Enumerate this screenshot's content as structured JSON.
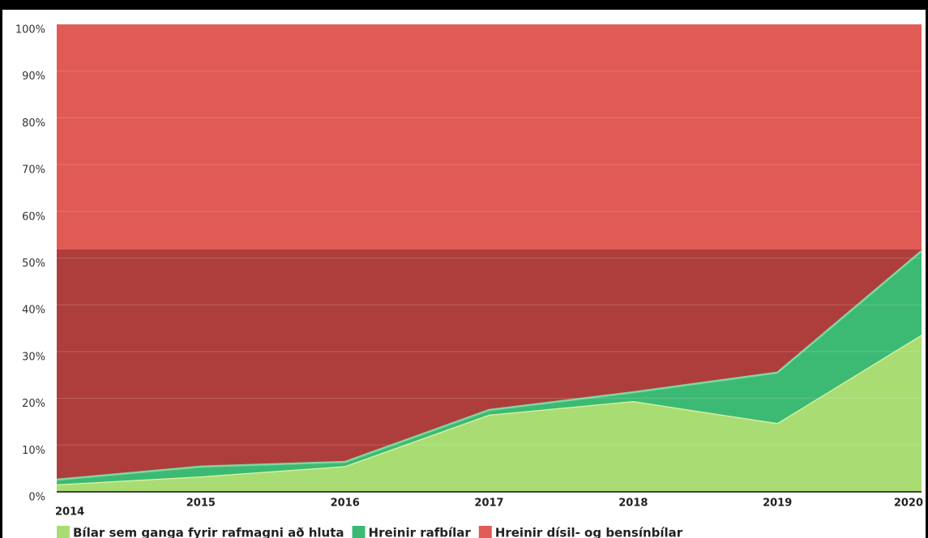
{
  "chart_data": {
    "type": "stacked_area",
    "categories": [
      "2014",
      "2015",
      "2016",
      "2017",
      "2018",
      "2019",
      "2020"
    ],
    "series": [
      {
        "name": "Bílar sem ganga fyrir rafmagni að hluta",
        "color": "#a9dd74",
        "values": [
          1.6,
          3.3,
          5.5,
          16.5,
          19.4,
          14.7,
          33.6
        ]
      },
      {
        "name": "Hreinir rafbílar",
        "color": "#3cba74",
        "values": [
          1.0,
          2.1,
          0.9,
          1.0,
          1.9,
          10.8,
          17.9
        ]
      },
      {
        "name": "Hreinir dísil- og bensínbílar",
        "color": "#e05a56",
        "values": [
          97.4,
          94.6,
          93.6,
          82.5,
          78.7,
          74.5,
          48.5
        ]
      }
    ],
    "ylim": [
      0,
      100
    ],
    "yticks": [
      {
        "value": 0,
        "label": "0%"
      },
      {
        "value": 10,
        "label": "10%"
      },
      {
        "value": 20,
        "label": "20%"
      },
      {
        "value": 30,
        "label": "30%"
      },
      {
        "value": 40,
        "label": "40%"
      },
      {
        "value": 50,
        "label": "50%"
      },
      {
        "value": 60,
        "label": "60%"
      },
      {
        "value": 70,
        "label": "70%"
      },
      {
        "value": 80,
        "label": "80%"
      },
      {
        "value": 90,
        "label": "90%"
      },
      {
        "value": 100,
        "label": "100%"
      }
    ],
    "grid": true,
    "legend": "bottom"
  }
}
